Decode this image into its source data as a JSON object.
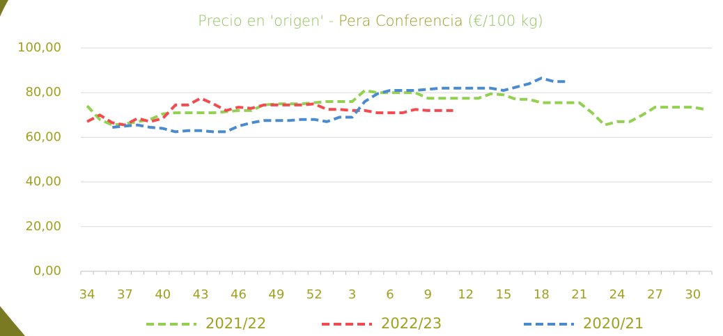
{
  "chart_data": {
    "type": "line",
    "title_parts": [
      "Precio en 'origen' - ",
      "Pera Conferencia",
      " (€/100 kg)"
    ],
    "title_colors": [
      "#93c35a",
      "#9a9a1e",
      "#93c35a"
    ],
    "categories": [
      "34",
      null,
      null,
      "37",
      null,
      null,
      "40",
      null,
      null,
      "43",
      null,
      null,
      "46",
      null,
      null,
      "49",
      null,
      null,
      "52",
      null,
      null,
      "3",
      null,
      null,
      "6",
      null,
      null,
      "9",
      null,
      null,
      "12",
      null,
      null,
      "15",
      null,
      null,
      "18",
      null,
      null,
      "21",
      null,
      null,
      "24",
      null,
      null,
      "27",
      null,
      null,
      "30",
      null
    ],
    "ylim": [
      0,
      100
    ],
    "yticks": [
      {
        "value": 0,
        "label": "0,00"
      },
      {
        "value": 20,
        "label": "20,00"
      },
      {
        "value": 40,
        "label": "40,00"
      },
      {
        "value": 60,
        "label": "60,00"
      },
      {
        "value": 80,
        "label": "80,00"
      },
      {
        "value": 100,
        "label": "100,00"
      }
    ],
    "grid": true,
    "legend": "bottom",
    "series": [
      {
        "name": "2021/22",
        "color": "#92d050",
        "values": [
          74.1,
          68,
          65.5,
          66,
          67,
          68,
          70.5,
          71,
          71,
          71,
          71,
          71.5,
          72,
          72,
          74.5,
          75,
          75,
          75,
          75.5,
          76,
          76,
          76,
          81,
          80,
          80,
          80,
          80,
          77.5,
          77.5,
          77.5,
          77.5,
          77.5,
          79.5,
          79,
          77,
          77,
          75.5,
          75.5,
          75.5,
          75.5,
          71,
          65.5,
          67,
          67,
          70,
          73.5,
          73.5,
          73.5,
          73.5,
          72.5
        ]
      },
      {
        "name": "2022/23",
        "color": "#f24a4f",
        "values": [
          67,
          70,
          66.5,
          65.5,
          68.5,
          67,
          68.5,
          74.5,
          74.5,
          77.5,
          75,
          72,
          73.5,
          73,
          74.5,
          74.5,
          74.5,
          74.5,
          75,
          72.5,
          72.5,
          72,
          72,
          71,
          71,
          71,
          72.5,
          72,
          72,
          72,
          null,
          null,
          null,
          null,
          null,
          null,
          null,
          null,
          null,
          null,
          null,
          null,
          null,
          null,
          null,
          null,
          null,
          null,
          null,
          null
        ]
      },
      {
        "name": "2020/21",
        "color": "#4a8bd0",
        "values": [
          null,
          null,
          64.5,
          65,
          65.5,
          64.5,
          64,
          62.5,
          63,
          63,
          62.5,
          62.5,
          65,
          66.5,
          67.5,
          67.5,
          67.5,
          68,
          68,
          67,
          69,
          69,
          76,
          79.5,
          81,
          81,
          81,
          81.5,
          82,
          82,
          82,
          82,
          82,
          81,
          82.5,
          84,
          86.5,
          85,
          85,
          null,
          null,
          null,
          null,
          null,
          null,
          null,
          null,
          null,
          null,
          null
        ]
      }
    ]
  }
}
